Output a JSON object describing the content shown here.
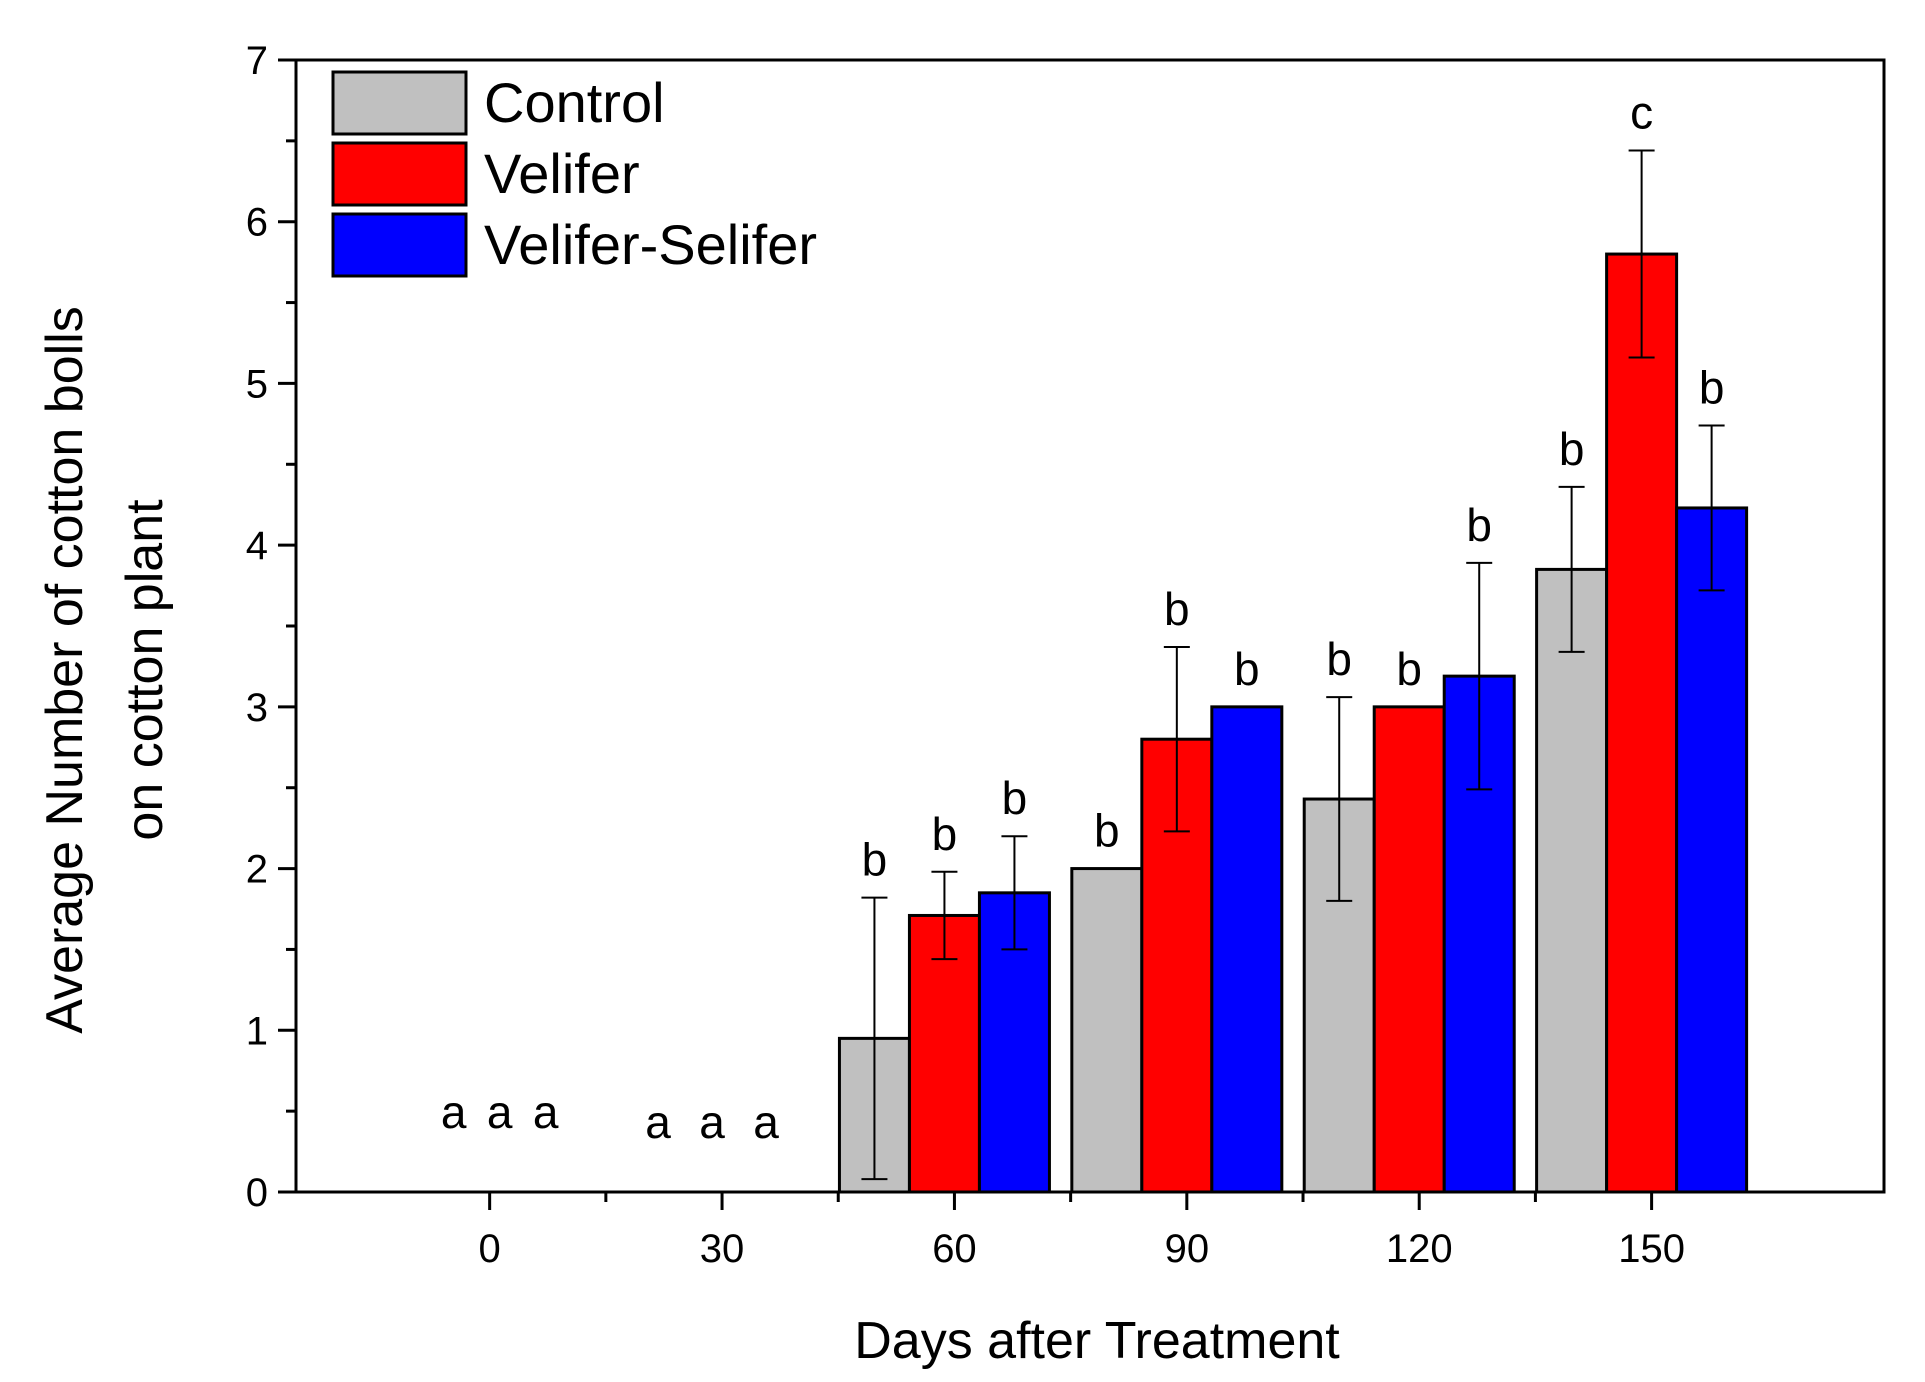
{
  "chart_data": {
    "type": "bar",
    "xlabel": "Days after Treatment",
    "ylabel_lines": [
      "Average Number of cotton bolls",
      "on cotton plant"
    ],
    "ylim": [
      0,
      7
    ],
    "yticks": [
      0,
      1,
      2,
      3,
      4,
      5,
      6,
      7
    ],
    "categories": [
      "0",
      "30",
      "60",
      "90",
      "120",
      "150"
    ],
    "x_values": [
      0,
      30,
      60,
      90,
      120,
      150
    ],
    "legend_position": "top-left",
    "grid": false,
    "series": [
      {
        "name": "Control",
        "color": "#c0c0c0",
        "values": [
          0,
          0,
          0.95,
          2.0,
          2.43,
          3.85
        ],
        "errors": [
          null,
          null,
          0.87,
          null,
          0.63,
          0.51
        ],
        "letters": [
          "a",
          "a",
          "b",
          "b",
          "b",
          "b"
        ]
      },
      {
        "name": "Velifer",
        "color": "#ff0000",
        "values": [
          0,
          0,
          1.71,
          2.8,
          3.0,
          5.8
        ],
        "errors": [
          null,
          null,
          0.27,
          0.57,
          null,
          0.64
        ],
        "letters": [
          "a",
          "a",
          "b",
          "b",
          "b",
          "c"
        ]
      },
      {
        "name": "Velifer-Selifer",
        "color": "#0000ff",
        "values": [
          0,
          0,
          1.85,
          3.0,
          3.19,
          4.23
        ],
        "errors": [
          null,
          null,
          0.35,
          null,
          0.7,
          0.51
        ],
        "letters": [
          "a",
          "a",
          "b",
          "b",
          "b",
          "b"
        ]
      }
    ]
  }
}
